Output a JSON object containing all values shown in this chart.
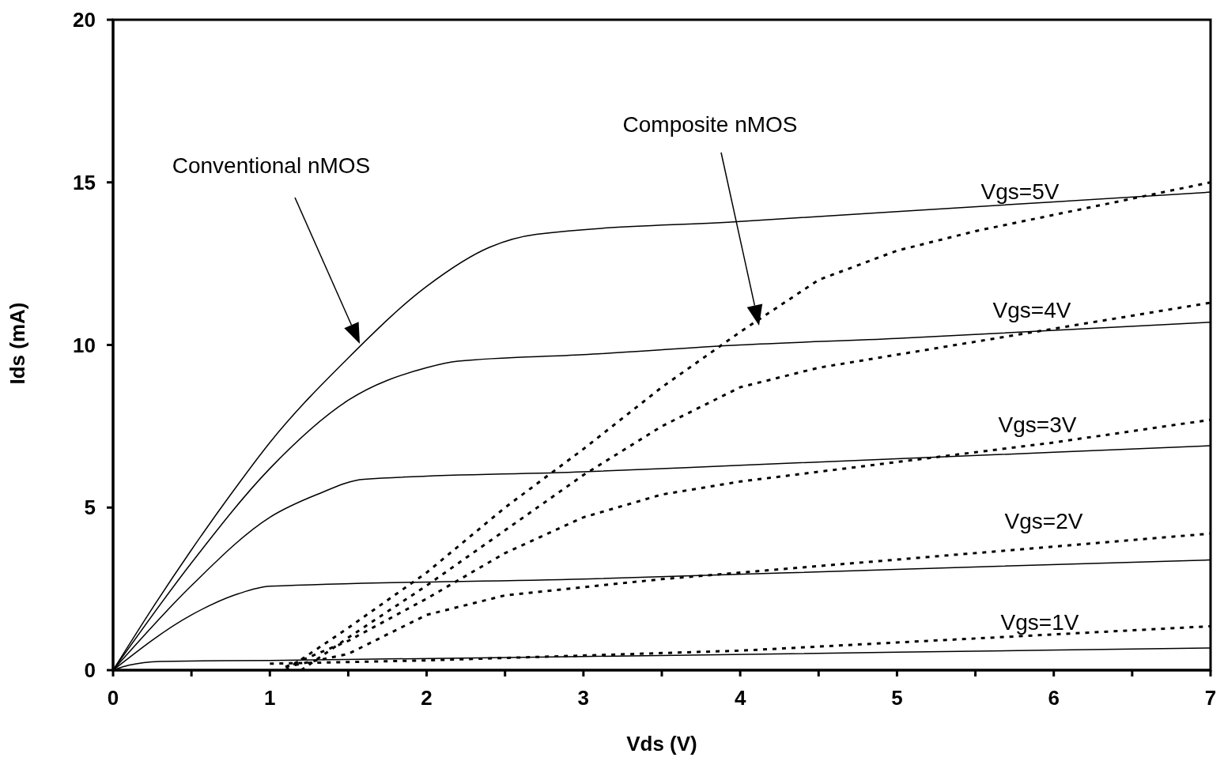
{
  "chart_data": {
    "type": "line",
    "xlabel": "Vds (V)",
    "ylabel": "Ids (mA)",
    "xlim": [
      0,
      7
    ],
    "ylim": [
      0,
      20
    ],
    "xticks": [
      0,
      {
        "value": 0.5,
        "label": null
      },
      1,
      {
        "value": 1.5,
        "label": null
      },
      2,
      {
        "value": 2.5,
        "label": null
      },
      3,
      {
        "value": 3.5,
        "label": null
      },
      4,
      {
        "value": 4.5,
        "label": null
      },
      5,
      {
        "value": 5.5,
        "label": null
      },
      6,
      {
        "value": 6.5,
        "label": null
      },
      7
    ],
    "yticks": [
      0,
      5,
      10,
      15,
      20
    ],
    "marker": "none",
    "series": [
      {
        "color": "#000000",
        "line_style": "solid",
        "x": [
          0,
          0.25,
          0.5,
          0.75,
          1,
          1.5,
          2,
          2.4,
          2.7,
          4,
          5,
          6,
          7
        ],
        "values": [
          0,
          1.9,
          3.7,
          5.4,
          7.0,
          9.6,
          11.8,
          13.0,
          13.4,
          13.8,
          14.1,
          14.4,
          14.7
        ]
      },
      {
        "color": "#000000",
        "line_style": "solid",
        "x": [
          0,
          0.5,
          1,
          1.5,
          2,
          2.2,
          3,
          4,
          5,
          6,
          7
        ],
        "values": [
          0,
          3.3,
          6.2,
          8.3,
          9.3,
          9.5,
          9.7,
          10.0,
          10.2,
          10.45,
          10.7
        ]
      },
      {
        "color": "#000000",
        "line_style": "solid",
        "x": [
          0,
          0.5,
          1,
          1.3,
          1.6,
          3,
          4,
          5,
          6,
          7
        ],
        "values": [
          0,
          2.6,
          4.7,
          5.4,
          5.87,
          6.1,
          6.3,
          6.5,
          6.7,
          6.9
        ]
      },
      {
        "color": "#000000",
        "line_style": "solid",
        "x": [
          0,
          0.5,
          0.8,
          1,
          3,
          5,
          7
        ],
        "values": [
          0,
          1.7,
          2.35,
          2.58,
          2.8,
          3.1,
          3.39
        ]
      },
      {
        "color": "#000000",
        "line_style": "solid",
        "x": [
          0,
          0.1,
          0.3,
          1,
          3,
          5,
          7
        ],
        "values": [
          0,
          0.15,
          0.27,
          0.3,
          0.42,
          0.55,
          0.68
        ]
      },
      {
        "color": "#000000",
        "line_style": "dotted",
        "x": [
          1.1,
          1.5,
          2,
          2.5,
          3,
          3.5,
          4,
          4.5,
          5,
          5.5,
          6,
          6.5,
          7
        ],
        "values": [
          0,
          1.3,
          3.0,
          5.0,
          6.8,
          8.7,
          10.4,
          12.0,
          12.9,
          13.5,
          14.0,
          14.5,
          15.0
        ]
      },
      {
        "color": "#000000",
        "line_style": "dotted",
        "x": [
          1.2,
          1.5,
          2,
          2.5,
          3,
          3.5,
          4,
          4.5,
          5,
          5.5,
          6,
          6.5,
          7
        ],
        "values": [
          0,
          1.0,
          2.6,
          4.3,
          6.0,
          7.5,
          8.7,
          9.3,
          9.7,
          10.1,
          10.5,
          10.9,
          11.3
        ]
      },
      {
        "color": "#000000",
        "line_style": "dotted",
        "x": [
          1.1,
          1.5,
          2,
          2.5,
          3,
          3.5,
          4,
          4.5,
          5,
          5.5,
          6,
          6.5,
          7
        ],
        "values": [
          0.1,
          0.9,
          2.2,
          3.6,
          4.7,
          5.4,
          5.8,
          6.1,
          6.4,
          6.7,
          7.0,
          7.35,
          7.7
        ]
      },
      {
        "color": "#000000",
        "line_style": "dotted",
        "x": [
          1.1,
          1.5,
          2,
          2.5,
          3,
          3.5,
          4,
          5,
          6,
          7
        ],
        "values": [
          0.1,
          0.5,
          1.7,
          2.3,
          2.55,
          2.8,
          3.0,
          3.4,
          3.8,
          4.2
        ]
      },
      {
        "color": "#000000",
        "line_style": "dotted",
        "x": [
          1.0,
          2,
          3,
          4,
          5,
          6,
          7
        ],
        "values": [
          0.2,
          0.3,
          0.45,
          0.6,
          0.85,
          1.1,
          1.35
        ]
      }
    ],
    "annotations": [
      "Vgs=5V",
      "Vgs=4V",
      "Vgs=3V",
      "Vgs=2V",
      "Vgs=1V",
      "Conventional nMOS",
      "Composite nMOS"
    ]
  }
}
